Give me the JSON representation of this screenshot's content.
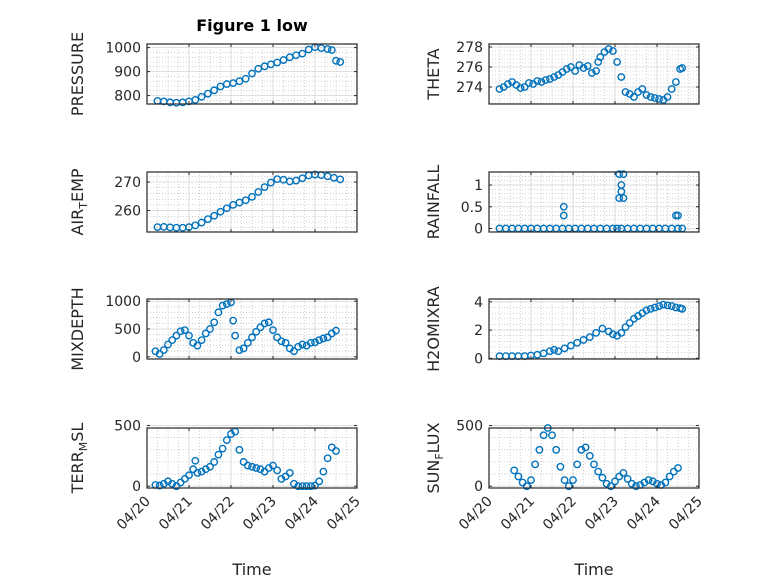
{
  "figure": {
    "title": "Figure 1 low",
    "xlabel": "Time",
    "marker_color": "#0072BD",
    "axes_color": "#262626",
    "grid_color": "#b0b0b0"
  },
  "chart_data": [
    {
      "type": "scatter",
      "ylabel": "PRESSURE",
      "xlim": [
        "04/20",
        "04/25"
      ],
      "xticks": [
        "04/20",
        "04/21",
        "04/22",
        "04/23",
        "04/24",
        "04/25"
      ],
      "ylim": [
        765,
        1015
      ],
      "yticks": [
        "800",
        "900",
        "1000"
      ],
      "ytick_values": [
        800,
        900,
        1000
      ],
      "grid": true,
      "x_day": [
        20.25,
        20.4,
        20.55,
        20.7,
        20.85,
        21.0,
        21.15,
        21.3,
        21.45,
        21.6,
        21.75,
        21.9,
        22.05,
        22.2,
        22.35,
        22.5,
        22.65,
        22.8,
        22.95,
        23.1,
        23.25,
        23.4,
        23.55,
        23.7,
        23.85,
        24.0,
        24.15,
        24.3,
        24.4,
        24.5,
        24.6
      ],
      "y": [
        778,
        776,
        772,
        770,
        772,
        776,
        782,
        795,
        808,
        822,
        838,
        848,
        852,
        860,
        870,
        892,
        912,
        922,
        930,
        938,
        948,
        960,
        968,
        975,
        992,
        1002,
        998,
        994,
        990,
        945,
        940
      ]
    },
    {
      "type": "scatter",
      "ylabel": "THETA",
      "xlim": [
        "04/20",
        "04/25"
      ],
      "xticks": [
        "04/20",
        "04/21",
        "04/22",
        "04/23",
        "04/24",
        "04/25"
      ],
      "ylim": [
        272.3,
        278.3
      ],
      "yticks": [
        "274",
        "276",
        "278"
      ],
      "ytick_values": [
        274,
        276,
        278
      ],
      "grid": true,
      "x_day": [
        20.25,
        20.35,
        20.45,
        20.55,
        20.65,
        20.75,
        20.85,
        20.95,
        21.05,
        21.15,
        21.25,
        21.35,
        21.45,
        21.55,
        21.65,
        21.75,
        21.85,
        21.95,
        22.05,
        22.15,
        22.25,
        22.35,
        22.45,
        22.55,
        22.6,
        22.65,
        22.75,
        22.85,
        22.95,
        23.05,
        23.15,
        23.25,
        23.35,
        23.45,
        23.55,
        23.65,
        23.75,
        23.85,
        23.95,
        24.05,
        24.15,
        24.25,
        24.35,
        24.45,
        24.55,
        24.6
      ],
      "y": [
        273.8,
        274.0,
        274.3,
        274.5,
        274.2,
        273.9,
        274.0,
        274.4,
        274.3,
        274.6,
        274.5,
        274.7,
        274.8,
        275.0,
        275.2,
        275.5,
        275.8,
        276.0,
        275.6,
        276.2,
        275.9,
        276.1,
        275.4,
        275.6,
        276.5,
        277.0,
        277.5,
        277.8,
        277.6,
        276.5,
        275.0,
        273.5,
        273.3,
        273.0,
        273.5,
        273.8,
        273.2,
        273.0,
        272.9,
        272.8,
        272.7,
        273.0,
        273.8,
        274.5,
        275.8,
        275.9
      ]
    },
    {
      "type": "scatter",
      "ylabel": "AIR_TEMP",
      "xlim": [
        "04/20",
        "04/25"
      ],
      "xticks": [
        "04/20",
        "04/21",
        "04/22",
        "04/23",
        "04/24",
        "04/25"
      ],
      "ylim": [
        252.5,
        273.5
      ],
      "yticks": [
        "260",
        "270"
      ],
      "ytick_values": [
        260,
        270
      ],
      "grid": true,
      "x_day": [
        20.25,
        20.4,
        20.55,
        20.7,
        20.85,
        21.0,
        21.15,
        21.3,
        21.45,
        21.6,
        21.75,
        21.9,
        22.05,
        22.2,
        22.35,
        22.5,
        22.65,
        22.8,
        22.95,
        23.1,
        23.25,
        23.4,
        23.55,
        23.7,
        23.85,
        24.0,
        24.15,
        24.3,
        24.45,
        24.6
      ],
      "y": [
        254.2,
        254.3,
        254.1,
        254.0,
        254.0,
        254.2,
        254.8,
        255.8,
        257.0,
        258.2,
        259.6,
        260.8,
        262.0,
        262.8,
        263.6,
        264.8,
        266.5,
        268.2,
        269.8,
        271.0,
        270.8,
        270.2,
        270.5,
        271.3,
        272.3,
        272.6,
        272.4,
        272.0,
        271.5,
        270.9
      ]
    },
    {
      "type": "scatter",
      "ylabel": "RAINFALL",
      "xlim": [
        "04/20",
        "04/25"
      ],
      "xticks": [
        "04/20",
        "04/21",
        "04/22",
        "04/23",
        "04/24",
        "04/25"
      ],
      "ylim": [
        -0.08,
        1.3
      ],
      "yticks": [
        "0",
        "0.5",
        "1"
      ],
      "ytick_values": [
        0,
        0.5,
        1
      ],
      "grid": true,
      "x_day": [
        20.25,
        20.4,
        20.55,
        20.7,
        20.85,
        21.0,
        21.15,
        21.3,
        21.45,
        21.6,
        21.75,
        21.9,
        22.05,
        22.2,
        22.35,
        22.5,
        22.65,
        22.8,
        22.95,
        23.05,
        23.15,
        23.3,
        23.45,
        23.6,
        23.75,
        23.9,
        24.05,
        24.2,
        24.35,
        24.5,
        24.6,
        21.78,
        21.78,
        23.1,
        23.2,
        23.15,
        23.15,
        23.1,
        23.2,
        24.45,
        24.5
      ],
      "y": [
        0,
        0,
        0,
        0,
        0,
        0,
        0,
        0,
        0,
        0,
        0,
        0,
        0,
        0,
        0,
        0,
        0,
        0,
        0,
        0,
        0,
        0,
        0,
        0,
        0,
        0,
        0,
        0,
        0,
        0,
        0,
        0.5,
        0.3,
        1.25,
        1.25,
        1.0,
        0.85,
        0.7,
        0.7,
        0.3,
        0.3
      ]
    },
    {
      "type": "scatter",
      "ylabel": "MIXDEPTH",
      "xlim": [
        "04/20",
        "04/25"
      ],
      "xticks": [
        "04/20",
        "04/21",
        "04/22",
        "04/23",
        "04/24",
        "04/25"
      ],
      "ylim": [
        -40,
        1040
      ],
      "yticks": [
        "0",
        "500",
        "1000"
      ],
      "ytick_values": [
        0,
        500,
        1000
      ],
      "grid": true,
      "x_day": [
        20.2,
        20.3,
        20.4,
        20.5,
        20.6,
        20.7,
        20.8,
        20.9,
        21.0,
        21.1,
        21.2,
        21.3,
        21.4,
        21.5,
        21.6,
        21.7,
        21.8,
        21.9,
        22.0,
        22.05,
        22.1,
        22.2,
        22.3,
        22.4,
        22.5,
        22.6,
        22.7,
        22.8,
        22.9,
        23.0,
        23.1,
        23.2,
        23.3,
        23.4,
        23.5,
        23.6,
        23.7,
        23.8,
        23.9,
        24.0,
        24.1,
        24.2,
        24.3,
        24.4,
        24.5
      ],
      "y": [
        100,
        50,
        120,
        220,
        300,
        380,
        460,
        480,
        380,
        250,
        200,
        300,
        420,
        500,
        620,
        800,
        920,
        950,
        980,
        650,
        380,
        120,
        150,
        250,
        350,
        450,
        530,
        600,
        620,
        480,
        350,
        280,
        250,
        150,
        100,
        180,
        220,
        200,
        250,
        260,
        300,
        330,
        350,
        420,
        470
      ]
    },
    {
      "type": "scatter",
      "ylabel": "H2OMIXRA",
      "xlim": [
        "04/20",
        "04/25"
      ],
      "xticks": [
        "04/20",
        "04/21",
        "04/22",
        "04/23",
        "04/24",
        "04/25"
      ],
      "ylim": [
        -0.05,
        4.2
      ],
      "yticks": [
        "0",
        "2",
        "4"
      ],
      "ytick_values": [
        0,
        2,
        4
      ],
      "grid": true,
      "x_day": [
        20.25,
        20.4,
        20.55,
        20.7,
        20.85,
        21.0,
        21.15,
        21.3,
        21.45,
        21.55,
        21.65,
        21.8,
        21.95,
        22.1,
        22.25,
        22.4,
        22.55,
        22.7,
        22.85,
        22.95,
        23.05,
        23.15,
        23.25,
        23.35,
        23.45,
        23.55,
        23.65,
        23.75,
        23.85,
        23.95,
        24.05,
        24.15,
        24.25,
        24.35,
        24.45,
        24.55,
        24.6
      ],
      "y": [
        0.15,
        0.15,
        0.15,
        0.15,
        0.15,
        0.2,
        0.25,
        0.35,
        0.5,
        0.6,
        0.5,
        0.7,
        0.9,
        1.1,
        1.3,
        1.5,
        1.8,
        2.1,
        1.9,
        1.7,
        1.6,
        1.8,
        2.2,
        2.5,
        2.8,
        3.0,
        3.2,
        3.4,
        3.5,
        3.6,
        3.7,
        3.8,
        3.75,
        3.7,
        3.6,
        3.55,
        3.5
      ]
    },
    {
      "type": "scatter",
      "ylabel": "TERR_MSL",
      "xlim": [
        "04/20",
        "04/25"
      ],
      "xticks": [
        "04/20",
        "04/21",
        "04/22",
        "04/23",
        "04/24",
        "04/25"
      ],
      "ylim": [
        -15,
        480
      ],
      "yticks": [
        "0",
        "500"
      ],
      "ytick_values": [
        0,
        500
      ],
      "grid": true,
      "x_day": [
        20.2,
        20.3,
        20.4,
        20.5,
        20.6,
        20.7,
        20.8,
        20.9,
        21.0,
        21.1,
        21.15,
        21.2,
        21.3,
        21.4,
        21.5,
        21.6,
        21.7,
        21.8,
        21.9,
        22.0,
        22.1,
        22.2,
        22.3,
        22.4,
        22.5,
        22.6,
        22.7,
        22.8,
        22.9,
        23.0,
        23.1,
        23.2,
        23.3,
        23.4,
        23.5,
        23.6,
        23.7,
        23.8,
        23.9,
        24.0,
        24.1,
        24.2,
        24.3,
        24.4,
        24.5
      ],
      "y": [
        10,
        5,
        20,
        40,
        20,
        0,
        30,
        60,
        90,
        140,
        210,
        110,
        120,
        140,
        160,
        200,
        260,
        310,
        380,
        430,
        450,
        300,
        200,
        170,
        160,
        150,
        140,
        120,
        150,
        170,
        130,
        60,
        80,
        110,
        20,
        0,
        0,
        0,
        0,
        5,
        40,
        120,
        230,
        320,
        290
      ]
    },
    {
      "type": "scatter",
      "ylabel": "SUN_FLUX",
      "xlim": [
        "04/20",
        "04/25"
      ],
      "xticks": [
        "04/20",
        "04/21",
        "04/22",
        "04/23",
        "04/24",
        "04/25"
      ],
      "ylim": [
        -15,
        480
      ],
      "yticks": [
        "0",
        "500"
      ],
      "ytick_values": [
        0,
        500
      ],
      "grid": true,
      "x_day": [
        20.6,
        20.7,
        20.8,
        20.9,
        21.0,
        21.1,
        21.2,
        21.3,
        21.4,
        21.5,
        21.6,
        21.7,
        21.8,
        21.9,
        22.0,
        22.1,
        22.2,
        22.3,
        22.4,
        22.5,
        22.6,
        22.7,
        22.8,
        22.9,
        23.0,
        23.1,
        23.2,
        23.3,
        23.4,
        23.5,
        23.6,
        23.7,
        23.8,
        23.9,
        24.0,
        24.1,
        24.2,
        24.3,
        24.4,
        24.5
      ],
      "y": [
        130,
        80,
        30,
        0,
        50,
        180,
        300,
        420,
        480,
        420,
        300,
        160,
        50,
        0,
        50,
        180,
        300,
        320,
        250,
        180,
        120,
        70,
        20,
        0,
        40,
        80,
        110,
        60,
        20,
        0,
        10,
        30,
        50,
        40,
        20,
        10,
        30,
        80,
        120,
        150
      ]
    }
  ]
}
